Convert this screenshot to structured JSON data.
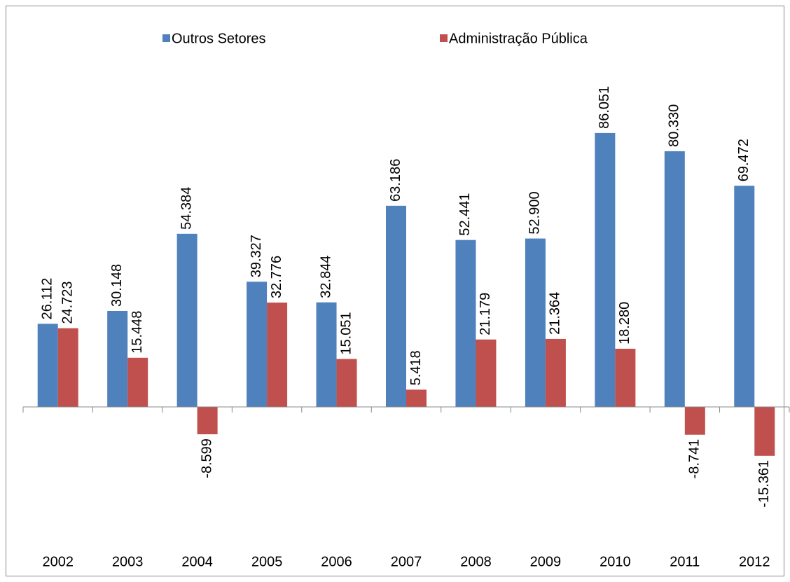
{
  "chart_data": {
    "type": "bar",
    "categories": [
      "2002",
      "2003",
      "2004",
      "2005",
      "2006",
      "2007",
      "2008",
      "2009",
      "2010",
      "2011",
      "2012"
    ],
    "series": [
      {
        "name": "Outros Setores",
        "color": "#4f81bd",
        "values": [
          26.112,
          30.148,
          54.384,
          39.327,
          32.844,
          63.186,
          52.441,
          52.9,
          86.051,
          80.33,
          69.472
        ],
        "value_labels": [
          "26.112",
          "30.148",
          "54.384",
          "39.327",
          "32.844",
          "63.186",
          "52.441",
          "52.900",
          "86.051",
          "80.330",
          "69.472"
        ]
      },
      {
        "name": "Administração Pública",
        "color": "#c0504d",
        "values": [
          24.723,
          15.448,
          -8.599,
          32.776,
          15.051,
          5.418,
          21.179,
          21.364,
          18.28,
          -8.741,
          -15.361
        ],
        "value_labels": [
          "24.723",
          "15.448",
          "-8.599",
          "32.776",
          "15.051",
          "5.418",
          "21.179",
          "21.364",
          "18.280",
          "-8.741",
          "-15.361"
        ]
      }
    ],
    "legend": "top"
  }
}
